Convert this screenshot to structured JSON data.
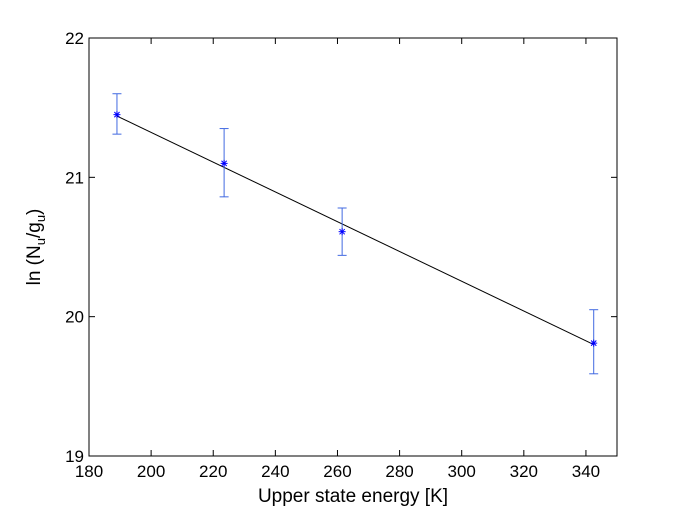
{
  "chart_data": {
    "type": "scatter",
    "title": "",
    "xlabel": "Upper state energy [K]",
    "ylabel": {
      "prefix": "ln (N",
      "sub1": "u",
      "mid": "/g",
      "sub2": "u",
      "suffix": ")"
    },
    "xlim": [
      180,
      350
    ],
    "ylim": [
      19,
      22
    ],
    "xticks": [
      180,
      200,
      220,
      240,
      260,
      280,
      300,
      320,
      340
    ],
    "yticks": [
      19,
      20,
      21,
      22
    ],
    "grid": false,
    "legend": "none",
    "series": [
      {
        "marker": "*",
        "color": "#0000ff",
        "errorbar_color": "#4169e1",
        "x": [
          189,
          223.5,
          261.5,
          342.5
        ],
        "y": [
          21.45,
          21.1,
          20.61,
          19.81
        ],
        "y_err_low": [
          0.14,
          0.24,
          0.17,
          0.22
        ],
        "y_err_high": [
          0.15,
          0.25,
          0.17,
          0.24
        ]
      }
    ],
    "fit_line": {
      "color": "#000000",
      "x": [
        189,
        342.5
      ],
      "y": [
        21.44,
        19.8
      ]
    }
  }
}
